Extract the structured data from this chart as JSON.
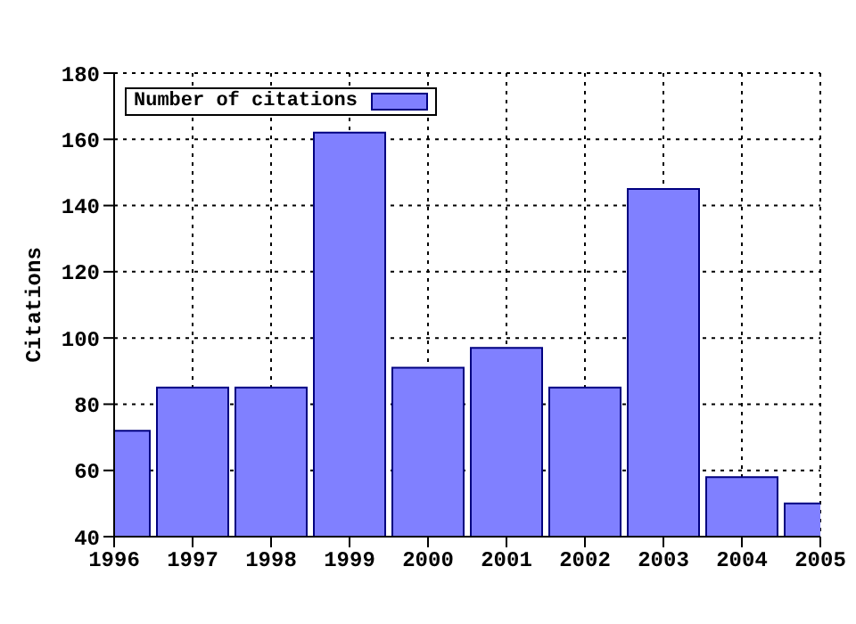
{
  "chart_data": {
    "type": "bar",
    "ylabel": "Citations",
    "x": [
      1996,
      1997,
      1998,
      1999,
      2000,
      2001,
      2002,
      2003,
      2004,
      2005
    ],
    "series": [
      {
        "name": "Number of citations",
        "color": "#8080ff",
        "values": [
          72,
          85,
          85,
          162,
          91,
          97,
          85,
          145,
          58,
          50
        ]
      }
    ],
    "xlim": [
      1996,
      2005
    ],
    "xticks": [
      1996,
      1997,
      1998,
      1999,
      2000,
      2001,
      2002,
      2003,
      2004,
      2005
    ],
    "ylim": [
      40,
      180
    ],
    "yticks": [
      40,
      60,
      80,
      100,
      120,
      140,
      160,
      180
    ],
    "grid": true,
    "legend": "top left"
  }
}
